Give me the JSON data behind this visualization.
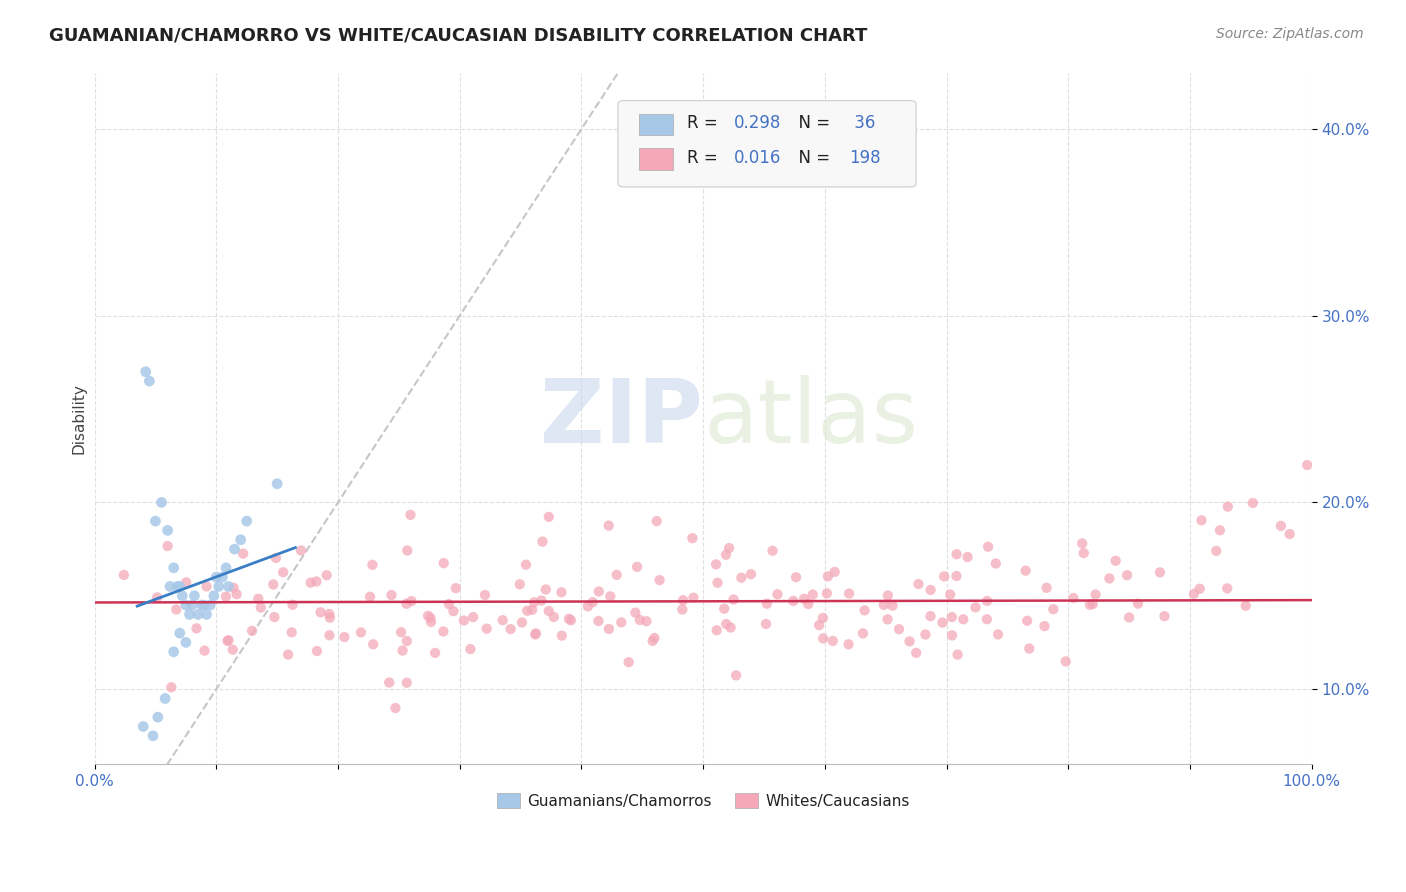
{
  "title": "GUAMANIAN/CHAMORRO VS WHITE/CAUCASIAN DISABILITY CORRELATION CHART",
  "source": "Source: ZipAtlas.com",
  "ylabel": "Disability",
  "y_ticks": [
    0.1,
    0.2,
    0.3,
    0.4
  ],
  "y_tick_labels": [
    "10.0%",
    "20.0%",
    "30.0%",
    "40.0%"
  ],
  "xlim": [
    0.0,
    1.0
  ],
  "ylim": [
    0.06,
    0.43
  ],
  "legend_r1": "0.298",
  "legend_n1": "36",
  "legend_r2": "0.016",
  "legend_n2": "198",
  "color_blue": "#a8c8e8",
  "color_pink": "#f4a8b8",
  "color_blue_line": "#3a7ec6",
  "color_pink_line": "#cc3355",
  "color_diag": "#c0c0c0",
  "watermark_zip": "ZIP",
  "watermark_atlas": "atlas",
  "label_guam": "Guamanians/Chamorros",
  "label_white": "Whites/Caucasians",
  "background_color": "#ffffff",
  "grid_color": "#e0e0e0",
  "tick_color": "#4472c4",
  "guam_x": [
    0.04,
    0.042,
    0.045,
    0.048,
    0.05,
    0.052,
    0.055,
    0.058,
    0.06,
    0.062,
    0.065,
    0.065,
    0.068,
    0.07,
    0.07,
    0.072,
    0.075,
    0.075,
    0.078,
    0.08,
    0.082,
    0.085,
    0.088,
    0.09,
    0.092,
    0.095,
    0.098,
    0.1,
    0.102,
    0.105,
    0.108,
    0.11,
    0.115,
    0.12,
    0.125,
    0.15
  ],
  "guam_y": [
    0.08,
    0.27,
    0.265,
    0.075,
    0.19,
    0.085,
    0.2,
    0.095,
    0.185,
    0.155,
    0.165,
    0.12,
    0.155,
    0.155,
    0.13,
    0.15,
    0.145,
    0.125,
    0.14,
    0.145,
    0.15,
    0.14,
    0.145,
    0.145,
    0.14,
    0.145,
    0.15,
    0.16,
    0.155,
    0.16,
    0.165,
    0.155,
    0.175,
    0.18,
    0.19,
    0.21
  ],
  "white_seed": 123,
  "white_n": 198
}
